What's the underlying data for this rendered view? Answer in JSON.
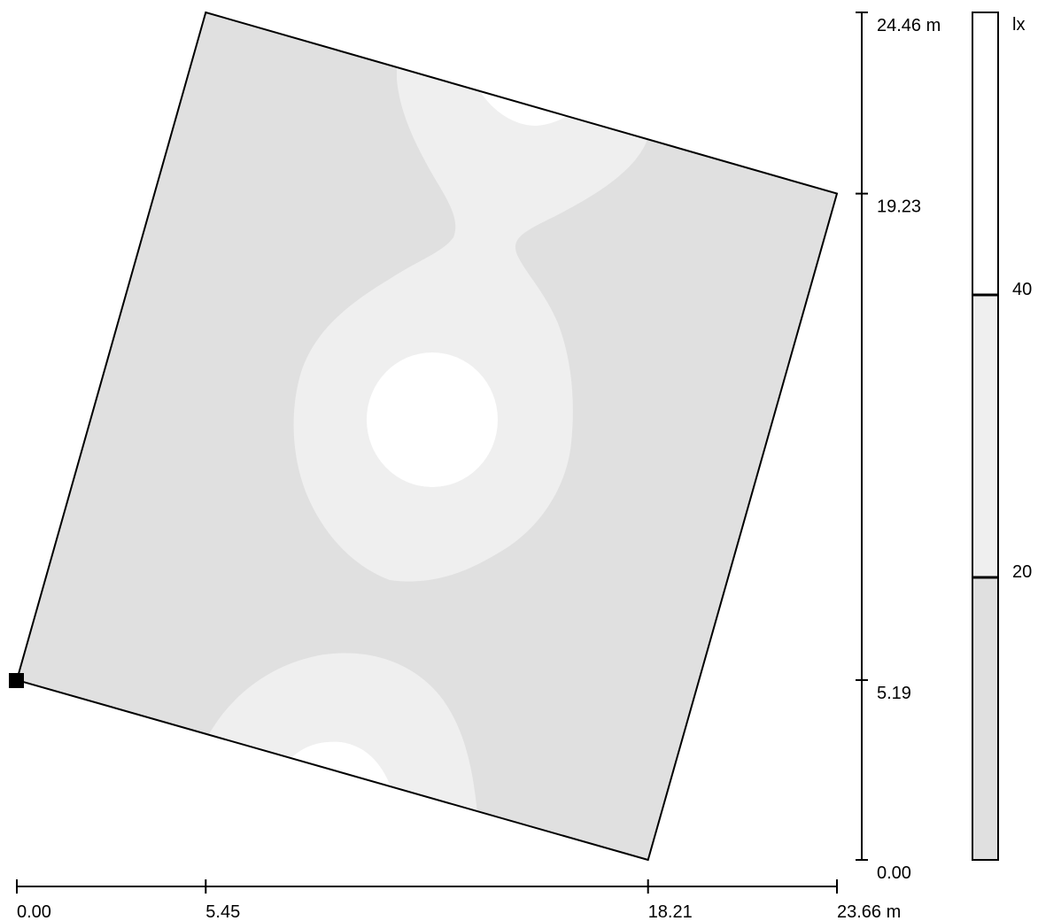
{
  "chart_data": {
    "type": "heatmap",
    "description_units": "m",
    "x_axis": {
      "ticks": [
        0.0,
        5.45,
        18.21,
        23.66
      ],
      "tick_labels": [
        "0.00",
        "5.45",
        "18.21",
        "23.66 m"
      ],
      "range": [
        0,
        23.66
      ]
    },
    "y_axis": {
      "ticks": [
        0.0,
        5.19,
        19.23,
        24.46
      ],
      "tick_labels": [
        "0.00",
        "5.19",
        "19.23",
        "24.46 m"
      ],
      "range": [
        0,
        24.46
      ]
    },
    "room_polygon": [
      [
        0.0,
        5.19
      ],
      [
        5.45,
        24.46
      ],
      [
        23.66,
        19.23
      ],
      [
        18.21,
        0.0
      ]
    ],
    "legend": {
      "unit": "lx",
      "levels": [
        20,
        40
      ],
      "level_labels": [
        "20",
        "40"
      ],
      "bands": [
        {
          "min": null,
          "max": 20,
          "color": "#e0e0e0"
        },
        {
          "min": 20,
          "max": 40,
          "color": "#efefef"
        },
        {
          "min": 40,
          "max": null,
          "color": "#ffffff"
        }
      ],
      "placement": "right"
    },
    "colors": {
      "low": "#e0e0e0",
      "mid": "#efefef",
      "high": "#ffffff",
      "outline": "#000000"
    }
  }
}
